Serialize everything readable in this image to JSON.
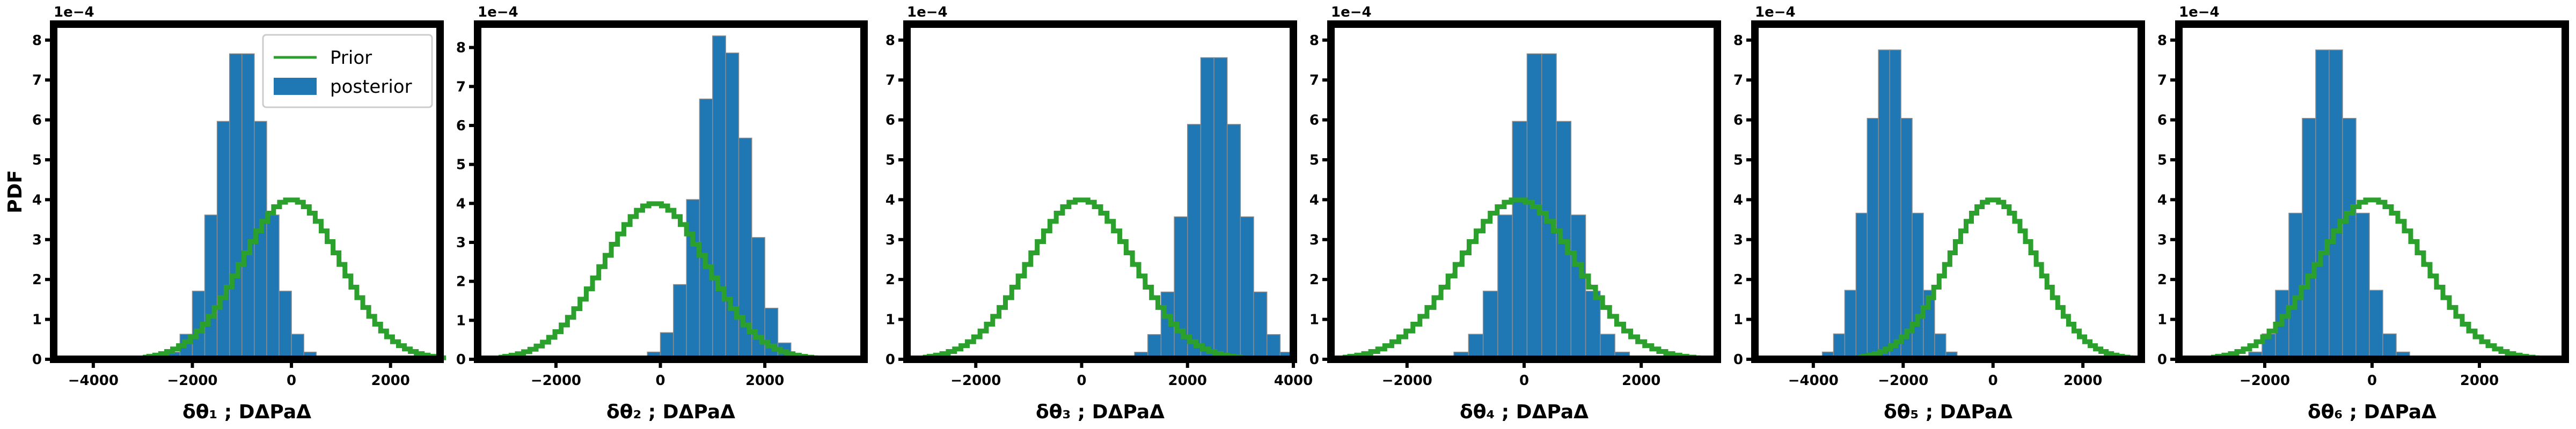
{
  "figure": {
    "ylabel": "PDF",
    "legend": {
      "placement": "top-right of first panel",
      "prior_label": "Prior",
      "posterior_label": "posterior"
    },
    "colors": {
      "posterior": "#1f77b4",
      "prior": "#2ca02c",
      "bin_edge": "#8c8c8c"
    }
  },
  "chart_data": [
    {
      "type": "bar",
      "panel": 1,
      "xlabel": "δθ₁ ; DΔPaΔ",
      "exponent_label": "1e−4",
      "xlim": [
        -4800,
        3000
      ],
      "ylim": [
        0,
        8.4
      ],
      "xticks": [
        -4000,
        -2000,
        0,
        2000
      ],
      "xtick_labels": [
        "−4000",
        "−2000",
        "0",
        "2000"
      ],
      "yticks": [
        0,
        1,
        2,
        3,
        4,
        5,
        6,
        7,
        8
      ],
      "posterior": {
        "mean": -1000,
        "sd": 500,
        "peak": 7.9,
        "bin_width": 250,
        "range": [
          -3000,
          800
        ]
      },
      "prior": {
        "mean": 0,
        "sd": 1000,
        "peak": 4.0,
        "range": [
          -3000,
          3000
        ]
      },
      "show_legend": true
    },
    {
      "type": "bar",
      "panel": 2,
      "xlabel": "δθ₂ ; DΔPaΔ",
      "exponent_label": "1e−4",
      "xlim": [
        -3500,
        3900
      ],
      "ylim": [
        0,
        8.6
      ],
      "xticks": [
        -2000,
        0,
        2000
      ],
      "xtick_labels": [
        "−2000",
        "0",
        "2000"
      ],
      "yticks": [
        0,
        1,
        2,
        3,
        4,
        5,
        6,
        7,
        8
      ],
      "posterior": {
        "mean": 1200,
        "sd": 480,
        "peak": 8.4,
        "bin_width": 250,
        "range": [
          -500,
          3500
        ]
      },
      "prior": {
        "mean": -100,
        "sd": 1000,
        "peak": 4.0,
        "range": [
          -3100,
          2900
        ]
      },
      "show_legend": false
    },
    {
      "type": "bar",
      "panel": 3,
      "xlabel": "δθ₃ ; DΔPaΔ",
      "exponent_label": "1e−4",
      "xlim": [
        -3300,
        4000
      ],
      "ylim": [
        0,
        8.4
      ],
      "xticks": [
        -2000,
        0,
        2000,
        4000
      ],
      "xtick_labels": [
        "−2000",
        "0",
        "2000",
        "4000"
      ],
      "yticks": [
        0,
        1,
        2,
        3,
        4,
        5,
        6,
        7,
        8
      ],
      "posterior": {
        "mean": 2500,
        "sd": 500,
        "peak": 7.8,
        "bin_width": 250,
        "range": [
          500,
          4000
        ]
      },
      "prior": {
        "mean": 0,
        "sd": 1000,
        "peak": 4.0,
        "range": [
          -3000,
          3000
        ]
      },
      "show_legend": false
    },
    {
      "type": "bar",
      "panel": 4,
      "xlabel": "δθ₄ ; DΔPaΔ",
      "exponent_label": "1e−4",
      "xlim": [
        -3300,
        3300
      ],
      "ylim": [
        0,
        8.4
      ],
      "xticks": [
        -2000,
        0,
        2000
      ],
      "xtick_labels": [
        "−2000",
        "0",
        "2000"
      ],
      "yticks": [
        0,
        1,
        2,
        3,
        4,
        5,
        6,
        7,
        8
      ],
      "posterior": {
        "mean": 300,
        "sd": 500,
        "peak": 7.9,
        "bin_width": 250,
        "range": [
          -1700,
          2400
        ]
      },
      "prior": {
        "mean": -100,
        "sd": 1000,
        "peak": 4.0,
        "range": [
          -3100,
          2900
        ]
      },
      "show_legend": false
    },
    {
      "type": "bar",
      "panel": 5,
      "xlabel": "δθ₅ ; DΔPaΔ",
      "exponent_label": "1e−4",
      "xlim": [
        -5300,
        3300
      ],
      "ylim": [
        0,
        8.4
      ],
      "xticks": [
        -4000,
        -2000,
        0,
        2000
      ],
      "xtick_labels": [
        "−4000",
        "−2000",
        "0",
        "2000"
      ],
      "yticks": [
        0,
        1,
        2,
        3,
        4,
        5,
        6,
        7,
        8
      ],
      "posterior": {
        "mean": -2300,
        "sd": 500,
        "peak": 8.0,
        "bin_width": 250,
        "range": [
          -4300,
          -400
        ]
      },
      "prior": {
        "mean": 0,
        "sd": 1000,
        "peak": 4.0,
        "range": [
          -3000,
          3000
        ]
      },
      "show_legend": false
    },
    {
      "type": "bar",
      "panel": 6,
      "xlabel": "δθ₆ ; DΔPaΔ",
      "exponent_label": "1e−4",
      "xlim": [
        -3600,
        3600
      ],
      "ylim": [
        0,
        8.4
      ],
      "xticks": [
        -2000,
        0,
        2000
      ],
      "xtick_labels": [
        "−2000",
        "0",
        "2000"
      ],
      "yticks": [
        0,
        1,
        2,
        3,
        4,
        5,
        6,
        7,
        8
      ],
      "posterior": {
        "mean": -800,
        "sd": 500,
        "peak": 8.0,
        "bin_width": 250,
        "range": [
          -2800,
          1200
        ]
      },
      "prior": {
        "mean": 0,
        "sd": 1000,
        "peak": 4.0,
        "range": [
          -3000,
          3000
        ]
      },
      "show_legend": false
    }
  ]
}
